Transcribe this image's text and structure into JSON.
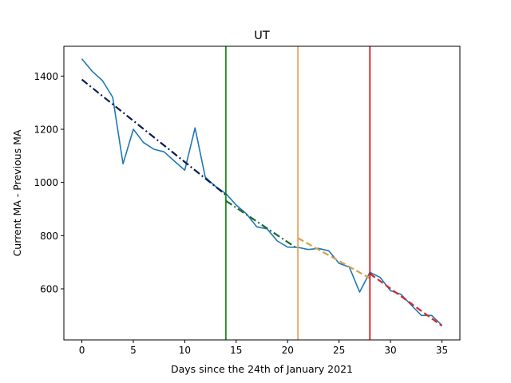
{
  "chart_data": {
    "type": "line",
    "title": "UT",
    "xlabel": "Days since the 24th of January 2021",
    "ylabel": "Current MA - Previous MA",
    "xlim": [
      -1.75,
      36.75
    ],
    "ylim": [
      408,
      1512
    ],
    "xticks": [
      0,
      5,
      10,
      15,
      20,
      25,
      30,
      35
    ],
    "yticks": [
      600,
      800,
      1000,
      1200,
      1400
    ],
    "grid": false,
    "legend": "none",
    "series": [
      {
        "role": "observed",
        "color": "#1f77b4",
        "x": [
          0,
          1,
          2,
          3,
          4,
          5,
          6,
          7,
          8,
          9,
          10,
          11,
          12,
          13,
          14,
          15,
          16,
          17,
          18,
          19,
          20,
          21,
          22,
          23,
          24,
          25,
          26,
          27,
          28,
          29,
          30,
          31,
          32,
          33,
          34,
          35
        ],
        "y": [
          1465,
          1418,
          1383,
          1320,
          1070,
          1200,
          1150,
          1125,
          1115,
          1080,
          1046,
          1205,
          1020,
          985,
          958,
          915,
          882,
          833,
          826,
          780,
          757,
          756,
          748,
          752,
          743,
          696,
          682,
          588,
          662,
          643,
          593,
          580,
          540,
          500,
          500,
          463
        ]
      },
      {
        "role": "trend",
        "color": "#0c1a52",
        "dash": "dashdot",
        "x": [
          0,
          14
        ],
        "y": [
          1387,
          953
        ]
      },
      {
        "role": "trend",
        "color": "#1e6b2a",
        "dash": "dashdot",
        "x": [
          14,
          21
        ],
        "y": [
          931,
          750
        ]
      },
      {
        "role": "trend",
        "color": "#d4a04a",
        "dash": "dashed",
        "x": [
          21,
          28
        ],
        "y": [
          791,
          640
        ]
      },
      {
        "role": "trend",
        "color": "#d62728",
        "dash": "dashed",
        "x": [
          28,
          35
        ],
        "y": [
          657,
          461
        ]
      }
    ],
    "vlines": [
      {
        "x": 14,
        "color": "#008000"
      },
      {
        "x": 21,
        "color": "#e89c4a"
      },
      {
        "x": 28,
        "color": "#e00000"
      }
    ]
  }
}
